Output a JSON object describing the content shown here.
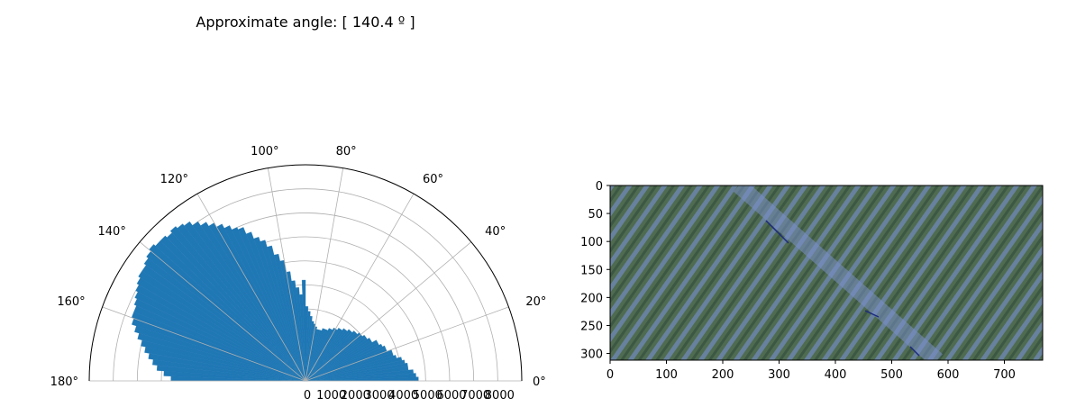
{
  "chart_data": [
    {
      "type": "polar-histogram",
      "title": "Approximate angle: [ 140.4 º ]",
      "theta_range_deg": [
        0,
        180
      ],
      "r_range": [
        0,
        9000
      ],
      "angle_ticks": [
        {
          "deg": 0,
          "label": "0°"
        },
        {
          "deg": 20,
          "label": "20°"
        },
        {
          "deg": 40,
          "label": "40°"
        },
        {
          "deg": 60,
          "label": "60°"
        },
        {
          "deg": 80,
          "label": "80°"
        },
        {
          "deg": 100,
          "label": "100°"
        },
        {
          "deg": 120,
          "label": "120°"
        },
        {
          "deg": 140,
          "label": "140°"
        },
        {
          "deg": 160,
          "label": "160°"
        },
        {
          "deg": 180,
          "label": "180°"
        }
      ],
      "radial_ticks": [
        {
          "value": 0,
          "label": "0"
        },
        {
          "value": 1000,
          "label": "1000"
        },
        {
          "value": 2000,
          "label": "2000"
        },
        {
          "value": 3000,
          "label": "3000"
        },
        {
          "value": 4000,
          "label": "4000"
        },
        {
          "value": 5000,
          "label": "5000"
        },
        {
          "value": 6000,
          "label": "6000"
        },
        {
          "value": 7000,
          "label": "7000"
        },
        {
          "value": 8000,
          "label": "8000"
        }
      ],
      "grid": true,
      "bar_color": "#1f77b4",
      "bins_deg": [
        0,
        2,
        4,
        6,
        8,
        10,
        12,
        14,
        16,
        18,
        20,
        22,
        24,
        26,
        28,
        30,
        32,
        34,
        36,
        38,
        40,
        42,
        44,
        46,
        48,
        50,
        52,
        54,
        56,
        58,
        60,
        62,
        64,
        66,
        68,
        70,
        72,
        74,
        76,
        78,
        80,
        82,
        84,
        86,
        88,
        90,
        92,
        94,
        96,
        98,
        100,
        102,
        104,
        106,
        108,
        110,
        112,
        114,
        116,
        118,
        120,
        122,
        124,
        126,
        128,
        130,
        132,
        134,
        136,
        138,
        140,
        142,
        144,
        146,
        148,
        150,
        152,
        154,
        156,
        158,
        160,
        162,
        164,
        166,
        168,
        170,
        172,
        174,
        176,
        178
      ],
      "values": [
        4700,
        4600,
        4500,
        4300,
        4300,
        4200,
        4100,
        3900,
        3800,
        3800,
        3600,
        3600,
        3500,
        3400,
        3400,
        3200,
        3200,
        3100,
        3100,
        3000,
        3000,
        2900,
        2900,
        2800,
        2800,
        2700,
        2700,
        2600,
        2600,
        2500,
        2500,
        2400,
        2400,
        2300,
        2300,
        2300,
        2200,
        2200,
        2200,
        2300,
        2400,
        2500,
        2700,
        2900,
        3100,
        4200,
        3600,
        3900,
        4200,
        4600,
        5100,
        5400,
        5800,
        6100,
        6300,
        6600,
        6900,
        7000,
        7200,
        7400,
        7600,
        7800,
        8000,
        8200,
        8300,
        8400,
        8300,
        8400,
        8400,
        8500,
        8400,
        8300,
        8200,
        8200,
        8100,
        8000,
        7900,
        7800,
        7700,
        7700,
        7600,
        7400,
        7200,
        7000,
        6800,
        6600,
        6400,
        6200,
        5900,
        5600
      ]
    },
    {
      "type": "image",
      "content": "aerial view of crop rows",
      "x_ticks": [
        0,
        100,
        200,
        300,
        400,
        500,
        600,
        700
      ],
      "y_ticks": [
        0,
        50,
        100,
        150,
        200,
        250,
        300
      ],
      "x_range": [
        0,
        768
      ],
      "y_range": [
        0,
        312
      ]
    }
  ]
}
